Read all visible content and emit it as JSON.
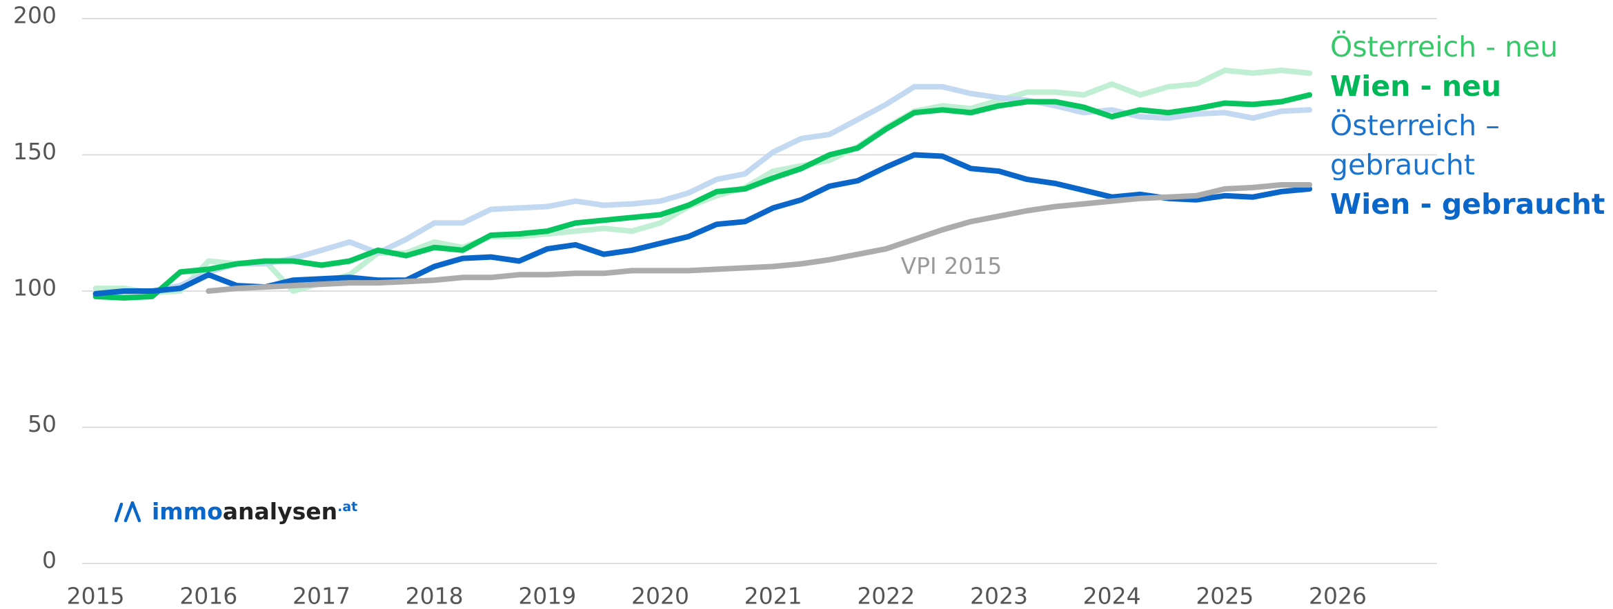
{
  "chart_data": {
    "type": "line",
    "x": [
      2015,
      2015.25,
      2015.5,
      2015.75,
      2016,
      2016.25,
      2016.5,
      2016.75,
      2017,
      2017.25,
      2017.5,
      2017.75,
      2018,
      2018.25,
      2018.5,
      2018.75,
      2019,
      2019.25,
      2019.5,
      2019.75,
      2020,
      2020.25,
      2020.5,
      2020.75,
      2021,
      2021.25,
      2021.5,
      2021.75,
      2022,
      2022.25,
      2022.5,
      2022.75,
      2023,
      2023.25,
      2023.5,
      2023.75,
      2024,
      2024.25,
      2024.5,
      2024.75,
      2025,
      2025.25,
      2025.5,
      2025.75
    ],
    "series": [
      {
        "name": "Österreich - neu",
        "color": "#c0efd3",
        "label_color": "#35c96a",
        "faded": true,
        "values": [
          101,
          101,
          99.5,
          100,
          111,
          110,
          111,
          100,
          103,
          106,
          114,
          114,
          118,
          116,
          120,
          120,
          121,
          122,
          123,
          122,
          125,
          131,
          135,
          138,
          144,
          146,
          148,
          153,
          160,
          166,
          168,
          167,
          170,
          173,
          173,
          172,
          176,
          172,
          175,
          176,
          181,
          180,
          181,
          180
        ]
      },
      {
        "name": "Wien - neu",
        "color": "#08c45f",
        "label_color": "#00b858",
        "bold": true,
        "values": [
          98,
          97.5,
          98,
          107,
          108,
          110,
          111,
          111,
          109.5,
          111,
          115,
          113,
          116,
          115,
          120.5,
          121,
          122,
          125,
          126,
          127,
          128,
          131.5,
          136.5,
          137.5,
          141.5,
          145,
          150,
          152.5,
          159.5,
          165.5,
          166.5,
          165.5,
          168,
          169.5,
          169.5,
          167.5,
          164,
          166.5,
          165.5,
          167,
          169,
          168.5,
          169.5,
          172
        ]
      },
      {
        "name": "Österreich – gebraucht",
        "color": "#c3d9f2",
        "label_color": "#1a73cc",
        "faded": true,
        "values": [
          99,
          99,
          100,
          102,
          107,
          110,
          110,
          112,
          115,
          118,
          114,
          119,
          125,
          125,
          130,
          130.5,
          131,
          133,
          131.5,
          132,
          133,
          136,
          141,
          143,
          151,
          156,
          157.5,
          163,
          168.5,
          175,
          175,
          172.5,
          171,
          170,
          168,
          165.5,
          166.5,
          164,
          163.5,
          165,
          165.5,
          163.5,
          166,
          166.5
        ]
      },
      {
        "name": "Wien - gebraucht",
        "color": "#0a66c8",
        "label_color": "#0a66c8",
        "bold": true,
        "values": [
          99,
          100,
          100,
          101,
          106,
          102,
          101.5,
          104,
          104.5,
          105,
          104,
          104,
          109,
          112,
          112.5,
          111,
          115.5,
          117,
          113.5,
          115,
          117.5,
          120,
          124.5,
          125.5,
          130.5,
          133.5,
          138.5,
          140.5,
          145.5,
          150,
          149.5,
          145,
          144,
          141,
          139.5,
          137,
          134.5,
          135.5,
          134,
          133.5,
          135,
          134.5,
          136.5,
          137.5
        ]
      },
      {
        "name": "VPI 2015",
        "color": "#acacac",
        "label_color": "#999999",
        "label": "inline",
        "values": [
          null,
          null,
          null,
          null,
          100,
          101,
          101.5,
          102,
          102.5,
          103,
          103,
          103.5,
          104,
          105,
          105,
          106,
          106,
          106.5,
          106.5,
          107.5,
          107.5,
          107.5,
          108,
          108.5,
          109,
          110,
          111.5,
          113.5,
          115.5,
          119,
          122.5,
          125.5,
          127.5,
          129.5,
          131,
          132,
          133,
          134,
          134.5,
          135,
          137.5,
          138,
          139,
          139
        ]
      }
    ],
    "xlim": [
      2014.88,
      2026.88
    ],
    "xticks": [
      2015,
      2016,
      2017,
      2018,
      2019,
      2020,
      2021,
      2022,
      2023,
      2024,
      2025,
      2026
    ],
    "ylim": [
      0,
      200
    ],
    "yticks": [
      0,
      50,
      100,
      150,
      200
    ],
    "grid": true,
    "logo": {
      "brand": "immo",
      "rest": "analysen",
      "tld": ".at"
    }
  }
}
